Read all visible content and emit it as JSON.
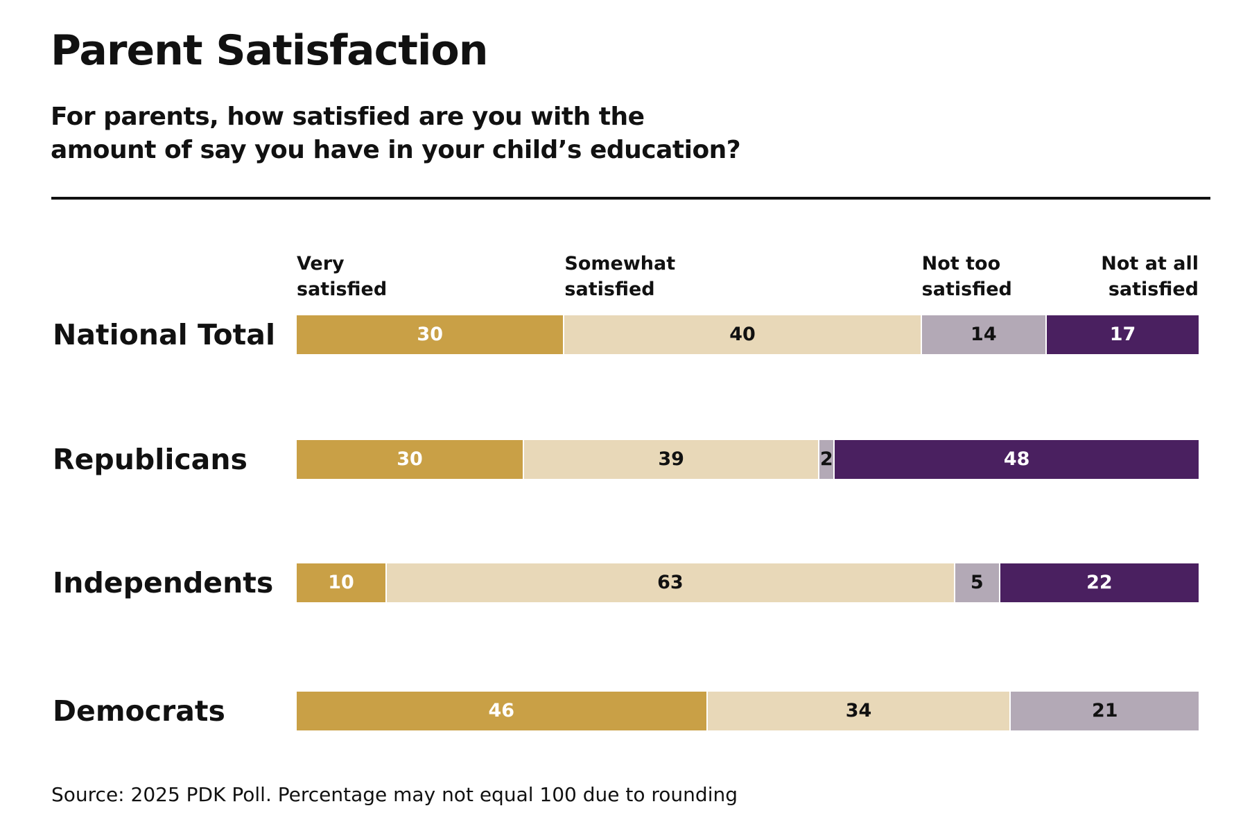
{
  "chart_data": {
    "type": "stacked_bar",
    "title": "Parent Satisfaction",
    "subtitle": [
      "For parents, how satisfied are you with the",
      "amount of say you have in your child’s education?"
    ],
    "source": "Source: 2025 PDK Poll. Percentage may not equal 100 due to rounding",
    "categories": [
      "National Total",
      "Republicans",
      "Independents",
      "Democrats"
    ],
    "series": [
      {
        "name": "Very satisfied",
        "color": "#c9a046",
        "label_color": "#ffffff",
        "values": [
          30,
          30,
          10,
          46
        ]
      },
      {
        "name": "Somewhat satisfied",
        "color": "#e8d8b8",
        "label_color": "#111111",
        "values": [
          40,
          39,
          63,
          34
        ]
      },
      {
        "name": "Not too satisfied",
        "color": "#b3a9b6",
        "label_color": "#111111",
        "values": [
          14,
          2,
          5,
          21
        ]
      },
      {
        "name": "Not at all satisfied",
        "color": "#4a2060",
        "label_color": "#ffffff",
        "values": [
          17,
          48,
          22,
          null
        ]
      }
    ]
  }
}
